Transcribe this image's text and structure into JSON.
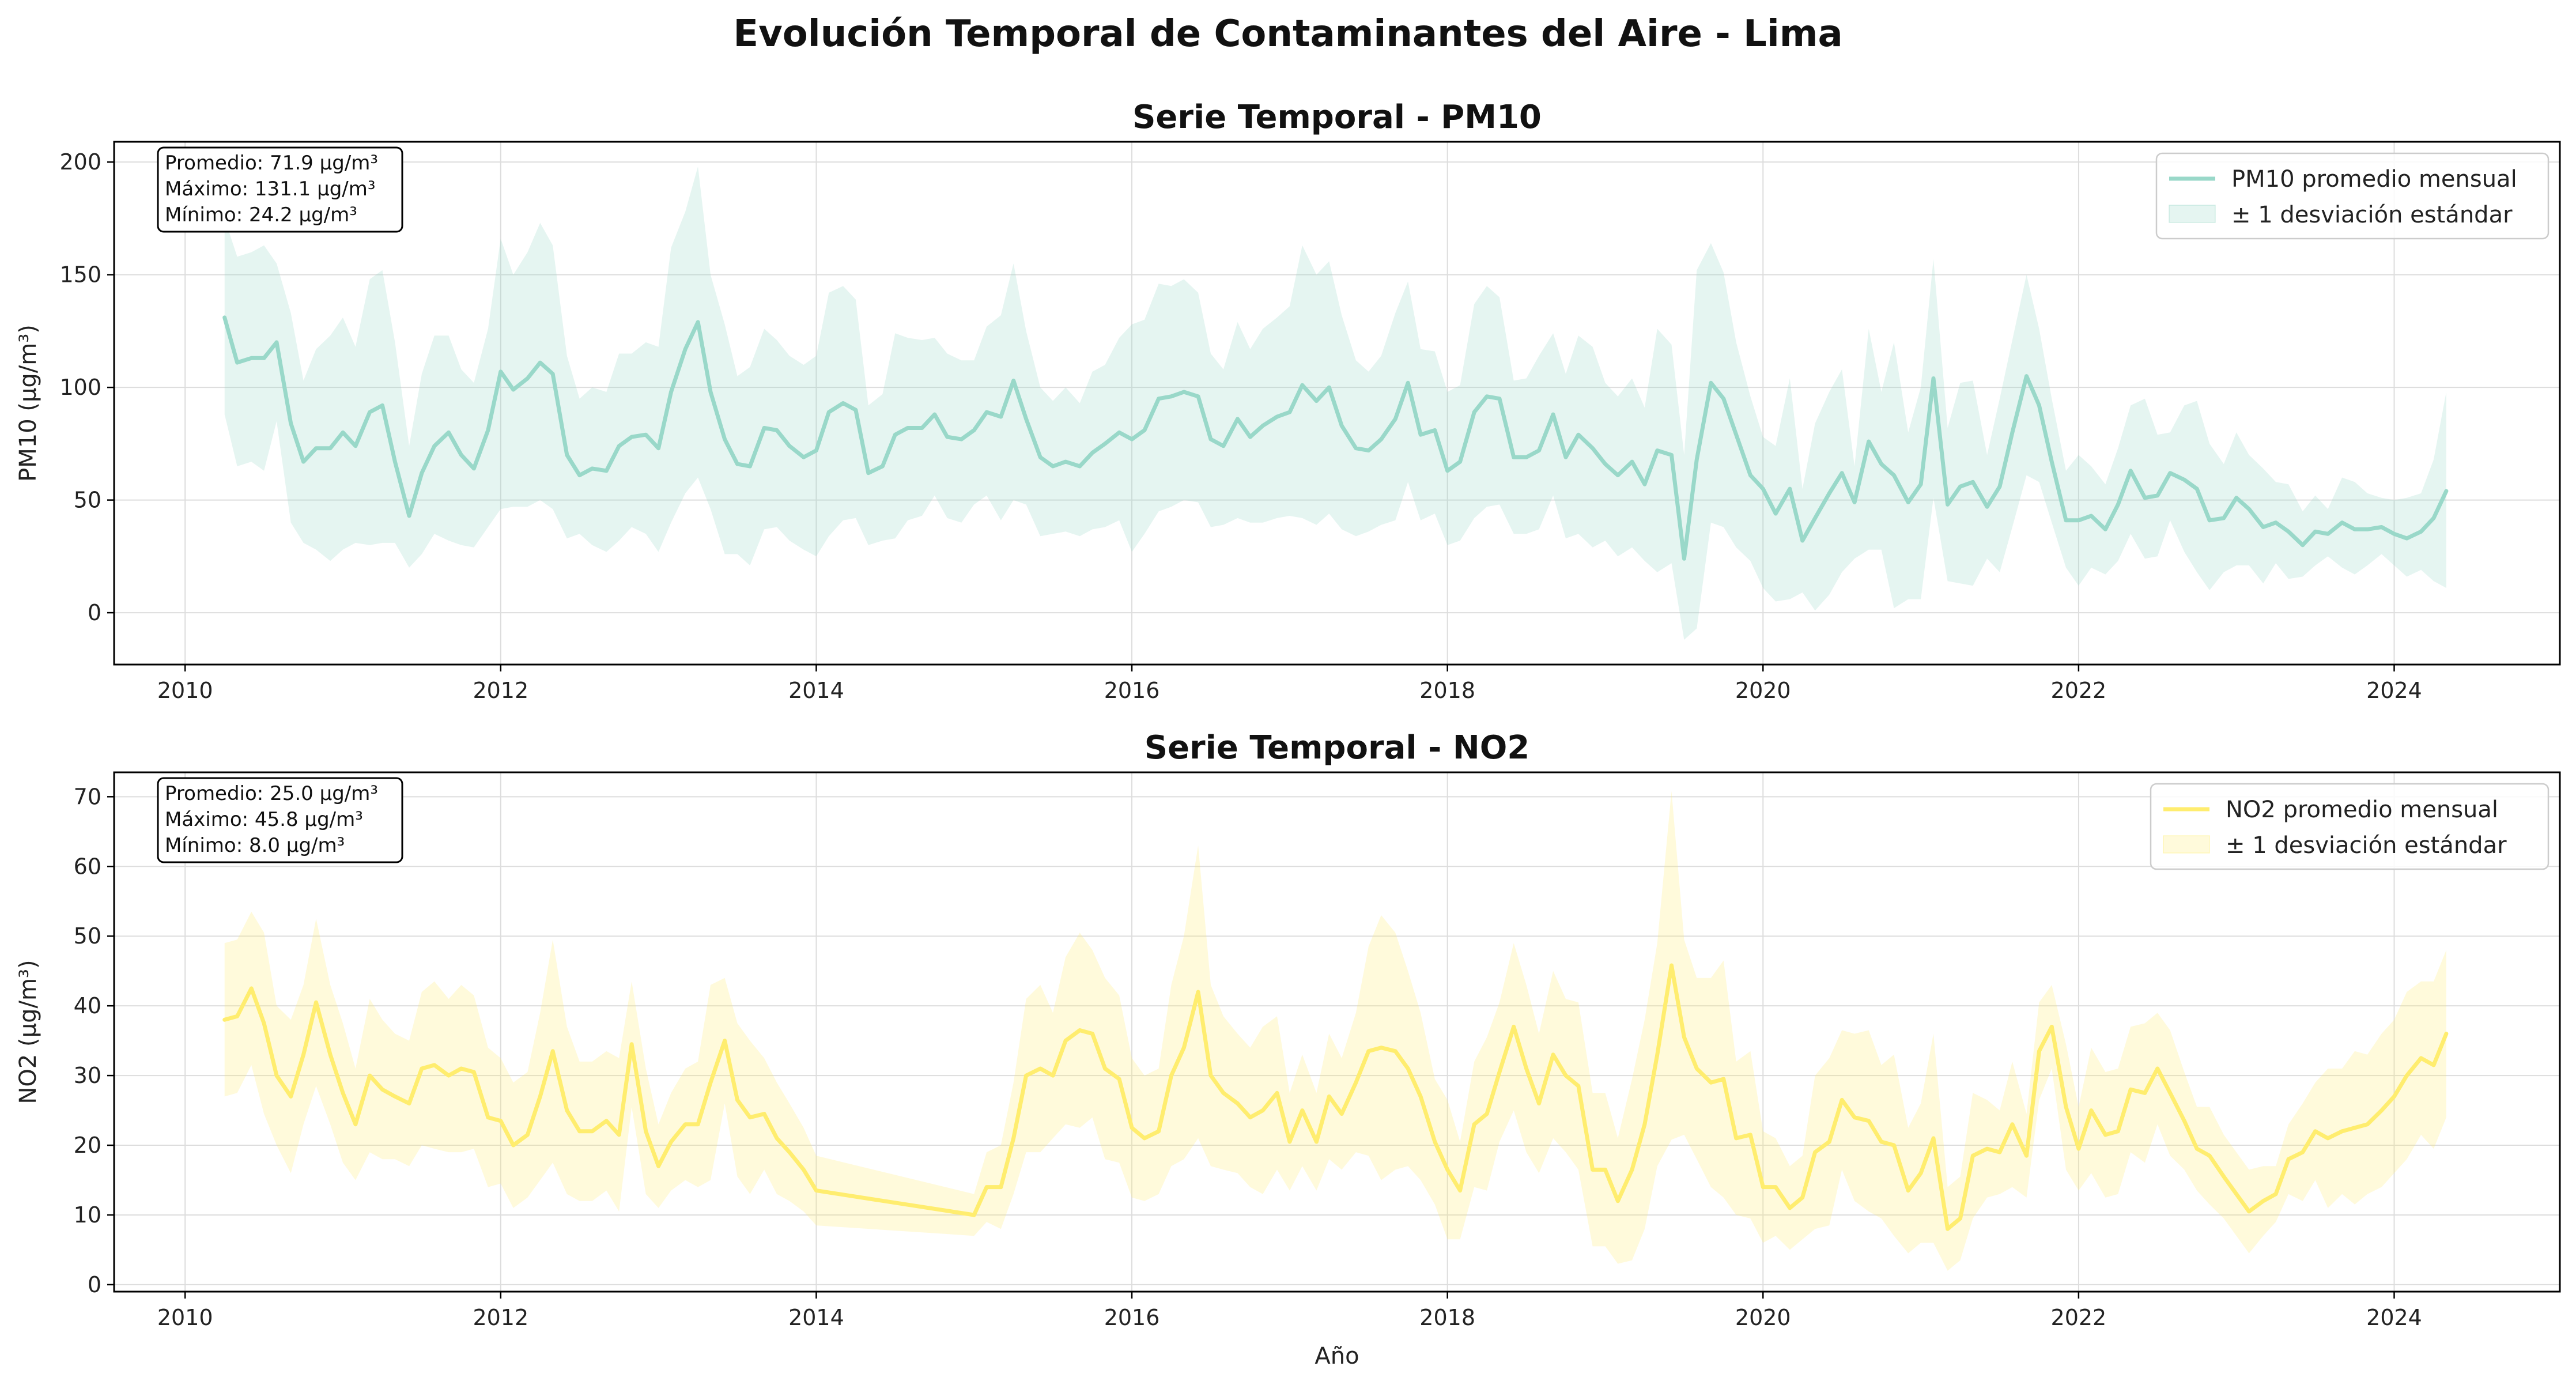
{
  "title": "Evolución Temporal de Contaminantes del Aire - Lima",
  "chart_data": [
    {
      "type": "line",
      "title": "Serie Temporal - PM10",
      "ylabel": "PM10 (μg/m³)",
      "xlabel": "",
      "xlim": [
        2009.55,
        2025.05
      ],
      "ylim": [
        -23,
        209
      ],
      "xticks": [
        2010,
        2012,
        2014,
        2016,
        2018,
        2020,
        2022,
        2024
      ],
      "yticks": [
        0,
        50,
        100,
        150,
        200
      ],
      "grid": true,
      "legend_position": "top-right",
      "color": "#99d8c9",
      "legend": [
        "PM10 promedio mensual",
        "± 1 desviación estándar"
      ],
      "stats": [
        "Promedio: 71.9 μg/m³",
        "Máximo: 131.1 μg/m³",
        "Mínimo: 24.2 μg/m³"
      ],
      "x": [
        2010.25,
        2010.33,
        2010.42,
        2010.5,
        2010.58,
        2010.67,
        2010.75,
        2010.83,
        2010.92,
        2011,
        2011.08,
        2011.17,
        2011.25,
        2011.33,
        2011.42,
        2011.5,
        2011.58,
        2011.67,
        2011.75,
        2011.83,
        2011.92,
        2012,
        2012.08,
        2012.17,
        2012.25,
        2012.33,
        2012.42,
        2012.5,
        2012.58,
        2012.67,
        2012.75,
        2012.83,
        2012.92,
        2013,
        2013.08,
        2013.17,
        2013.25,
        2013.33,
        2013.42,
        2013.5,
        2013.58,
        2013.67,
        2013.75,
        2013.83,
        2013.92,
        2014,
        2014.08,
        2014.17,
        2014.25,
        2014.33,
        2014.42,
        2014.5,
        2014.58,
        2014.67,
        2014.75,
        2014.83,
        2014.92,
        2015,
        2015.08,
        2015.17,
        2015.25,
        2015.33,
        2015.42,
        2015.5,
        2015.58,
        2015.67,
        2015.75,
        2015.83,
        2015.92,
        2016,
        2016.08,
        2016.17,
        2016.25,
        2016.33,
        2016.42,
        2016.5,
        2016.58,
        2016.67,
        2016.75,
        2016.83,
        2016.92,
        2017,
        2017.08,
        2017.17,
        2017.25,
        2017.33,
        2017.42,
        2017.5,
        2017.58,
        2017.67,
        2017.75,
        2017.83,
        2017.92,
        2018,
        2018.08,
        2018.17,
        2018.25,
        2018.33,
        2018.42,
        2018.5,
        2018.58,
        2018.67,
        2018.75,
        2018.83,
        2018.92,
        2019,
        2019.08,
        2019.17,
        2019.25,
        2019.33,
        2019.42,
        2019.5,
        2019.58,
        2019.67,
        2019.75,
        2019.83,
        2019.92,
        2020,
        2020.08,
        2020.17,
        2020.25,
        2020.33,
        2020.42,
        2020.5,
        2020.58,
        2020.67,
        2020.75,
        2020.83,
        2020.92,
        2021,
        2021.08,
        2021.17,
        2021.25,
        2021.33,
        2021.42,
        2021.5,
        2021.58,
        2021.67,
        2021.75,
        2021.83,
        2021.92,
        2022,
        2022.08,
        2022.17,
        2022.25,
        2022.33,
        2022.42,
        2022.5,
        2022.58,
        2022.67,
        2022.75,
        2022.83,
        2022.92,
        2023,
        2023.08,
        2023.17,
        2023.25,
        2023.33,
        2023.42,
        2023.5,
        2023.58,
        2023.67,
        2023.75,
        2023.83,
        2023.92,
        2024,
        2024.08,
        2024.17,
        2024.25,
        2024.33
      ],
      "mean": [
        131,
        111,
        113,
        113,
        120,
        84,
        67,
        73,
        73,
        80,
        74,
        89,
        92,
        67,
        43,
        62,
        74,
        80,
        70,
        64,
        81,
        107,
        99,
        104,
        111,
        106,
        70,
        61,
        64,
        63,
        74,
        78,
        79,
        73,
        98,
        117,
        129,
        98,
        77,
        66,
        65,
        82,
        81,
        74,
        69,
        72,
        89,
        93,
        90,
        62,
        65,
        79,
        82,
        82,
        88,
        78,
        77,
        81,
        89,
        87,
        103,
        86,
        69,
        65,
        67,
        65,
        71,
        75,
        80,
        77,
        81,
        95,
        96,
        98,
        96,
        77,
        74,
        86,
        78,
        83,
        87,
        89,
        101,
        94,
        100,
        83,
        73,
        72,
        77,
        86,
        102,
        79,
        81,
        63,
        67,
        89,
        96,
        95,
        69,
        69,
        72,
        88,
        69,
        79,
        73,
        66,
        61,
        67,
        57,
        72,
        70,
        24,
        68,
        102,
        95,
        79,
        61,
        55,
        44,
        55,
        32,
        42,
        53,
        62,
        49,
        76,
        66,
        61,
        49,
        57,
        104,
        48,
        56,
        58,
        47,
        56,
        80,
        105,
        92,
        67,
        41,
        41,
        43,
        37,
        48,
        63,
        51,
        52,
        62,
        59,
        55,
        41,
        42,
        51,
        46,
        38,
        40,
        36,
        30,
        36,
        35,
        40,
        37,
        37,
        38,
        35,
        33,
        36,
        42,
        54
      ],
      "upper": [
        175,
        158,
        160,
        163,
        155,
        133,
        103,
        117,
        123,
        131,
        118,
        148,
        152,
        120,
        74,
        106,
        123,
        123,
        108,
        102,
        126,
        166,
        150,
        160,
        173,
        163,
        114,
        95,
        100,
        98,
        115,
        115,
        120,
        118,
        162,
        178,
        198,
        150,
        128,
        105,
        109,
        126,
        121,
        114,
        110,
        114,
        142,
        145,
        139,
        92,
        97,
        124,
        122,
        121,
        122,
        115,
        112,
        112,
        127,
        132,
        155,
        125,
        100,
        94,
        100,
        93,
        107,
        110,
        122,
        128,
        130,
        146,
        145,
        148,
        142,
        115,
        108,
        129,
        117,
        126,
        131,
        136,
        163,
        150,
        156,
        132,
        112,
        107,
        114,
        133,
        147,
        117,
        116,
        98,
        101,
        137,
        145,
        140,
        103,
        104,
        114,
        124,
        106,
        123,
        118,
        102,
        96,
        104,
        91,
        126,
        119,
        70,
        152,
        164,
        151,
        120,
        96,
        78,
        74,
        104,
        55,
        84,
        98,
        108,
        65,
        126,
        98,
        120,
        80,
        100,
        157,
        82,
        102,
        103,
        70,
        95,
        121,
        150,
        126,
        95,
        63,
        70,
        65,
        57,
        73,
        92,
        95,
        79,
        80,
        92,
        94,
        75,
        66,
        80,
        70,
        64,
        58,
        57,
        45,
        52,
        46,
        60,
        58,
        53,
        51,
        50,
        51,
        53,
        68,
        98
      ],
      "lower": [
        88,
        65,
        67,
        63,
        85,
        40,
        31,
        28,
        23,
        28,
        31,
        30,
        31,
        31,
        20,
        26,
        35,
        32,
        30,
        29,
        38,
        46,
        47,
        47,
        50,
        46,
        33,
        35,
        30,
        27,
        32,
        38,
        35,
        27,
        40,
        53,
        60,
        46,
        26,
        26,
        21,
        37,
        38,
        32,
        28,
        25,
        34,
        41,
        42,
        30,
        32,
        33,
        41,
        43,
        52,
        42,
        40,
        48,
        52,
        41,
        50,
        48,
        34,
        35,
        36,
        34,
        37,
        38,
        41,
        27,
        35,
        45,
        47,
        50,
        49,
        38,
        39,
        42,
        40,
        40,
        42,
        43,
        42,
        39,
        44,
        37,
        34,
        36,
        39,
        41,
        58,
        41,
        44,
        30,
        32,
        42,
        47,
        48,
        35,
        35,
        37,
        52,
        33,
        35,
        29,
        32,
        25,
        29,
        23,
        18,
        22,
        -12,
        -7,
        40,
        38,
        29,
        23,
        11,
        5,
        6,
        9,
        1,
        8,
        18,
        24,
        28,
        28,
        2,
        6,
        6,
        51,
        14,
        13,
        12,
        24,
        18,
        38,
        61,
        58,
        40,
        20,
        12,
        20,
        17,
        23,
        35,
        24,
        25,
        41,
        27,
        18,
        10,
        18,
        21,
        21,
        13,
        22,
        15,
        16,
        21,
        25,
        20,
        17,
        21,
        26,
        21,
        16,
        19,
        14,
        11
      ]
    },
    {
      "type": "line",
      "title": "Serie Temporal - NO2",
      "ylabel": "NO2 (μg/m³)",
      "xlabel": "Año",
      "xlim": [
        2009.55,
        2025.05
      ],
      "ylim": [
        -1.0,
        73.5
      ],
      "xticks": [
        2010,
        2012,
        2014,
        2016,
        2018,
        2020,
        2022,
        2024
      ],
      "yticks": [
        0,
        10,
        20,
        30,
        40,
        50,
        60,
        70
      ],
      "grid": true,
      "legend_position": "top-right",
      "color": "#ffed6f",
      "legend": [
        "NO2 promedio mensual",
        "± 1 desviación estándar"
      ],
      "stats": [
        "Promedio: 25.0 μg/m³",
        "Máximo: 45.8 μg/m³",
        "Mínimo: 8.0 μg/m³"
      ],
      "x": [
        2010.25,
        2010.33,
        2010.42,
        2010.5,
        2010.58,
        2010.67,
        2010.75,
        2010.83,
        2010.92,
        2011,
        2011.08,
        2011.17,
        2011.25,
        2011.33,
        2011.42,
        2011.5,
        2011.58,
        2011.67,
        2011.75,
        2011.83,
        2011.92,
        2012,
        2012.08,
        2012.17,
        2012.25,
        2012.33,
        2012.42,
        2012.5,
        2012.58,
        2012.67,
        2012.75,
        2012.83,
        2012.92,
        2013,
        2013.08,
        2013.17,
        2013.25,
        2013.33,
        2013.42,
        2013.5,
        2013.58,
        2013.67,
        2013.75,
        2013.83,
        2013.92,
        2014,
        2015,
        2015.08,
        2015.17,
        2015.25,
        2015.33,
        2015.42,
        2015.5,
        2015.58,
        2015.67,
        2015.75,
        2015.83,
        2015.92,
        2016,
        2016.08,
        2016.17,
        2016.25,
        2016.33,
        2016.42,
        2016.5,
        2016.58,
        2016.67,
        2016.75,
        2016.83,
        2016.92,
        2017,
        2017.08,
        2017.17,
        2017.25,
        2017.33,
        2017.42,
        2017.5,
        2017.58,
        2017.67,
        2017.75,
        2017.83,
        2017.92,
        2018,
        2018.08,
        2018.17,
        2018.25,
        2018.33,
        2018.42,
        2018.5,
        2018.58,
        2018.67,
        2018.75,
        2018.83,
        2018.92,
        2019,
        2019.08,
        2019.17,
        2019.25,
        2019.33,
        2019.42,
        2019.5,
        2019.58,
        2019.67,
        2019.75,
        2019.83,
        2019.92,
        2020,
        2020.08,
        2020.17,
        2020.25,
        2020.33,
        2020.42,
        2020.5,
        2020.58,
        2020.67,
        2020.75,
        2020.83,
        2020.92,
        2021,
        2021.08,
        2021.17,
        2021.25,
        2021.33,
        2021.42,
        2021.5,
        2021.58,
        2021.67,
        2021.75,
        2021.83,
        2021.92,
        2022,
        2022.08,
        2022.17,
        2022.25,
        2022.33,
        2022.42,
        2022.5,
        2022.58,
        2022.67,
        2022.75,
        2022.83,
        2022.92,
        2023,
        2023.08,
        2023.17,
        2023.25,
        2023.33,
        2023.42,
        2023.5,
        2023.58,
        2023.67,
        2023.75,
        2023.83,
        2023.92,
        2024,
        2024.08,
        2024.17,
        2024.25,
        2024.33
      ],
      "mean": [
        38,
        38.5,
        42.5,
        37.5,
        30,
        27,
        33,
        40.5,
        33,
        27.5,
        23,
        30,
        28,
        27,
        26,
        31,
        31.5,
        30,
        31,
        30.5,
        24,
        23.5,
        20,
        21.5,
        27,
        33.5,
        25,
        22,
        22,
        23.5,
        21.5,
        34.5,
        22,
        17,
        20.5,
        23,
        23,
        29,
        35,
        26.5,
        24,
        24.5,
        21,
        19,
        16.5,
        13.5,
        10,
        14,
        14,
        21,
        30,
        31,
        30,
        35,
        36.5,
        36,
        31,
        29.5,
        22.5,
        21,
        22,
        30,
        34,
        42,
        30,
        27.5,
        26,
        24,
        25,
        27.5,
        20.5,
        25,
        20.5,
        27,
        24.5,
        29,
        33.5,
        34,
        33.5,
        31,
        27,
        20.5,
        16.5,
        13.5,
        23,
        24.5,
        30.5,
        37,
        31,
        26,
        33,
        30,
        28.5,
        16.5,
        16.5,
        12,
        16.5,
        23,
        33,
        45.8,
        35.5,
        31,
        29,
        29.5,
        21,
        21.5,
        14,
        14,
        11,
        12.5,
        19,
        20.5,
        26.5,
        24,
        23.5,
        20.5,
        20,
        13.5,
        16,
        21,
        8,
        9.5,
        18.5,
        19.5,
        19,
        23,
        18.5,
        33.5,
        37,
        25.5,
        19.5,
        25,
        21.5,
        22,
        28,
        27.5,
        31,
        27.5,
        23.5,
        19.5,
        18.5,
        15.5,
        13,
        10.5,
        12,
        13,
        18,
        19,
        22,
        21,
        22,
        22.5,
        23,
        25,
        27,
        30,
        32.5,
        31.5,
        36
      ]
    }
  ]
}
